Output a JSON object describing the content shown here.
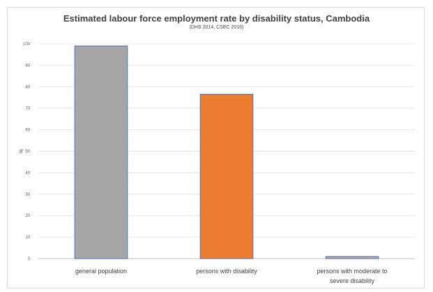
{
  "chart_data": {
    "type": "bar",
    "title": "Estimated labour force employment rate by disability status, Cambodia",
    "subtitle": "(DHS 2014, CSEC 2016)",
    "ylabel": "%",
    "xlabel": "",
    "categories": [
      "general population",
      "persons with disability",
      "persons with moderate to severe disability"
    ],
    "category_lines": [
      [
        "general population"
      ],
      [
        "persons with disability"
      ],
      [
        "persons with moderate to",
        "severe disability"
      ]
    ],
    "values": [
      99,
      76.5,
      1
    ],
    "colors": [
      "#a6a6a6",
      "#ed7d31",
      "#c9a98a"
    ],
    "yticks": [
      0,
      10,
      20,
      30,
      40,
      50,
      60,
      70,
      80,
      90,
      100
    ],
    "ylim": [
      0,
      100
    ],
    "grid": true,
    "legend": "none"
  }
}
